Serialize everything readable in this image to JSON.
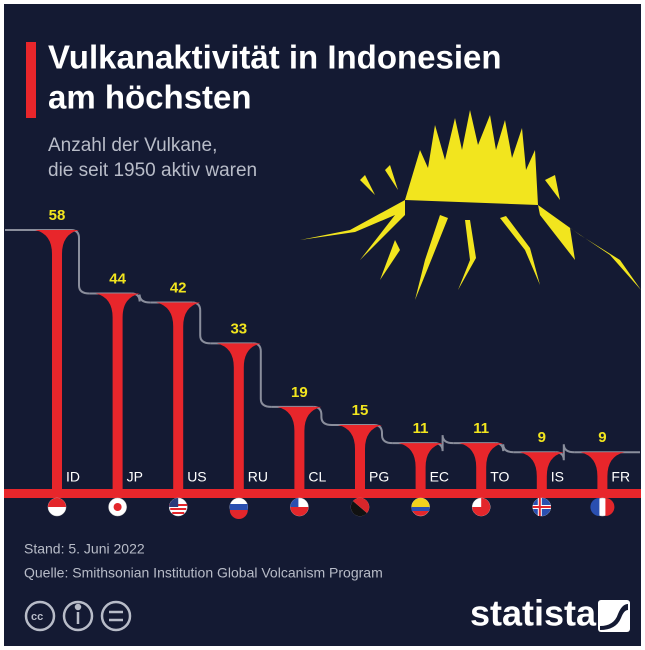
{
  "chart_data": {
    "type": "bar",
    "title": [
      "Vulkanaktivität in Indonesien",
      "am höchsten"
    ],
    "subtitle": [
      "Anzahl der Vulkane,",
      "die seit 1950 aktiv waren"
    ],
    "categories": [
      "ID",
      "JP",
      "US",
      "RU",
      "CL",
      "PG",
      "EC",
      "TO",
      "IS",
      "FR"
    ],
    "values": [
      58,
      44,
      42,
      33,
      19,
      15,
      11,
      11,
      9,
      9
    ],
    "color": "#e8262b",
    "value_label_color": "#f2e51e",
    "footer": [
      "Stand: 5. Juni 2022",
      "Quelle: Smithsonian Institution Global Volcanism Program"
    ],
    "brand": "statista"
  }
}
